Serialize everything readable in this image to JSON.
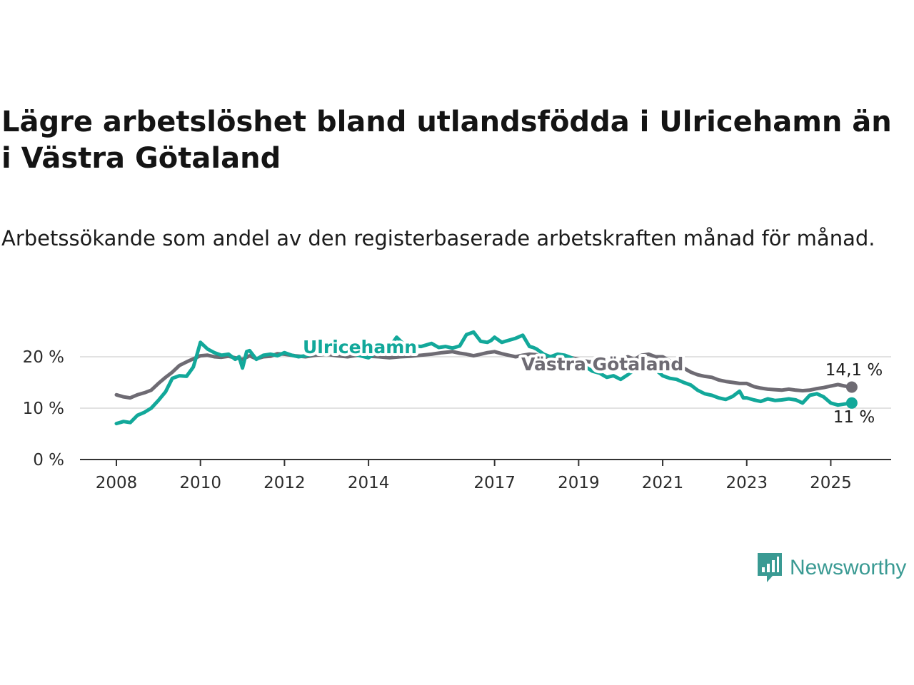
{
  "title": "Lägre arbetslöshet bland utlandsfödda i Ulricehamn än i Västra Götaland",
  "subtitle": "Arbetssökande som andel av den registerbaserade arbetskraften månad för månad.",
  "logo": {
    "text": "Newsworthy",
    "icon": "bar-chart-speech-bubble-icon",
    "color": "#3a9a93"
  },
  "chart_data": {
    "type": "line",
    "title": "Lägre arbetslöshet bland utlandsfödda i Ulricehamn än i Västra Götaland",
    "xlabel": "",
    "ylabel": "",
    "xlim": [
      2008,
      2025.5
    ],
    "ylim": [
      0,
      28
    ],
    "x_ticks": [
      2008,
      2010,
      2012,
      2014,
      2017,
      2019,
      2021,
      2023,
      2025
    ],
    "y_ticks": [
      {
        "value": 0,
        "label": "0 %"
      },
      {
        "value": 10,
        "label": "10 %"
      },
      {
        "value": 20,
        "label": "20 %"
      }
    ],
    "grid": "horizontal",
    "legend": "inline labels",
    "series": [
      {
        "name": "Ulricehamn",
        "color": "#12a89a",
        "end_label": "11 %",
        "x": [
          2008.0,
          2008.17,
          2008.33,
          2008.5,
          2008.67,
          2008.83,
          2009.0,
          2009.17,
          2009.33,
          2009.5,
          2009.67,
          2009.83,
          2009.92,
          2010.0,
          2010.17,
          2010.33,
          2010.5,
          2010.67,
          2010.83,
          2010.92,
          2011.0,
          2011.1,
          2011.17,
          2011.33,
          2011.5,
          2011.67,
          2011.83,
          2012.0,
          2012.17,
          2012.33,
          2012.5,
          2012.67,
          2012.83,
          2013.0,
          2013.25,
          2013.5,
          2013.75,
          2014.0,
          2014.17,
          2014.33,
          2014.5,
          2014.67,
          2014.83,
          2015.0,
          2015.25,
          2015.5,
          2015.67,
          2015.83,
          2016.0,
          2016.17,
          2016.33,
          2016.5,
          2016.67,
          2016.83,
          2016.92,
          2017.0,
          2017.17,
          2017.33,
          2017.5,
          2017.67,
          2017.83,
          2017.92,
          2018.0,
          2018.17,
          2018.33,
          2018.5,
          2018.67,
          2018.83,
          2019.0,
          2019.17,
          2019.33,
          2019.5,
          2019.67,
          2019.83,
          2020.0,
          2020.17,
          2020.33,
          2020.5,
          2020.67,
          2020.83,
          2021.0,
          2021.17,
          2021.33,
          2021.5,
          2021.67,
          2021.83,
          2022.0,
          2022.17,
          2022.33,
          2022.5,
          2022.67,
          2022.83,
          2022.92,
          2023.0,
          2023.17,
          2023.33,
          2023.5,
          2023.67,
          2023.83,
          2024.0,
          2024.17,
          2024.33,
          2024.5,
          2024.67,
          2024.83,
          2025.0,
          2025.17,
          2025.33,
          2025.5
        ],
        "values": [
          7.0,
          7.4,
          7.2,
          8.6,
          9.2,
          10.0,
          11.5,
          13.2,
          15.8,
          16.3,
          16.2,
          18.0,
          20.5,
          22.8,
          21.5,
          20.8,
          20.3,
          20.5,
          19.5,
          20.0,
          17.8,
          21.0,
          21.2,
          19.5,
          20.3,
          20.5,
          20.2,
          20.8,
          20.3,
          20.0,
          20.2,
          20.5,
          21.0,
          21.3,
          20.8,
          21.0,
          20.3,
          19.8,
          20.8,
          21.5,
          21.8,
          23.8,
          22.5,
          22.2,
          22.0,
          22.6,
          21.8,
          22.0,
          21.7,
          22.1,
          24.3,
          24.8,
          23.0,
          22.8,
          23.2,
          23.8,
          22.8,
          23.2,
          23.6,
          24.2,
          22.0,
          21.8,
          21.5,
          20.5,
          20.0,
          20.5,
          20.3,
          19.8,
          18.5,
          18.0,
          17.2,
          16.8,
          16.0,
          16.3,
          15.6,
          16.5,
          17.5,
          18.3,
          19.0,
          17.5,
          16.3,
          15.8,
          15.6,
          15.0,
          14.5,
          13.5,
          12.8,
          12.5,
          12.0,
          11.7,
          12.3,
          13.3,
          12.0,
          12.0,
          11.6,
          11.3,
          11.8,
          11.5,
          11.6,
          11.8,
          11.6,
          11.0,
          12.5,
          12.8,
          12.2,
          11.0,
          10.6,
          10.8,
          11.0
        ]
      },
      {
        "name": "Västra Götaland",
        "color": "#6e6b73",
        "end_label": "14,1 %",
        "x": [
          2008.0,
          2008.17,
          2008.33,
          2008.5,
          2008.67,
          2008.83,
          2009.0,
          2009.17,
          2009.33,
          2009.5,
          2009.67,
          2009.83,
          2010.0,
          2010.17,
          2010.33,
          2010.5,
          2010.67,
          2010.83,
          2011.0,
          2011.17,
          2011.33,
          2011.5,
          2011.67,
          2011.83,
          2012.0,
          2012.25,
          2012.5,
          2012.75,
          2013.0,
          2013.25,
          2013.5,
          2013.75,
          2014.0,
          2014.25,
          2014.5,
          2014.75,
          2015.0,
          2015.25,
          2015.5,
          2015.75,
          2016.0,
          2016.17,
          2016.33,
          2016.5,
          2016.67,
          2016.83,
          2017.0,
          2017.17,
          2017.33,
          2017.5,
          2017.67,
          2017.83,
          2018.0,
          2018.17,
          2018.33,
          2018.5,
          2018.67,
          2018.83,
          2019.0,
          2019.25,
          2019.5,
          2019.75,
          2020.0,
          2020.17,
          2020.33,
          2020.5,
          2020.67,
          2020.83,
          2021.0,
          2021.17,
          2021.33,
          2021.5,
          2021.67,
          2021.83,
          2022.0,
          2022.17,
          2022.33,
          2022.5,
          2022.67,
          2022.83,
          2023.0,
          2023.17,
          2023.33,
          2023.5,
          2023.67,
          2023.83,
          2024.0,
          2024.17,
          2024.33,
          2024.5,
          2024.67,
          2024.83,
          2025.0,
          2025.17,
          2025.33,
          2025.5
        ],
        "values": [
          12.6,
          12.2,
          12.0,
          12.6,
          13.0,
          13.5,
          14.8,
          16.0,
          17.0,
          18.3,
          19.0,
          19.6,
          20.2,
          20.3,
          20.0,
          19.9,
          20.1,
          19.8,
          19.5,
          20.2,
          19.6,
          20.0,
          20.1,
          20.6,
          20.5,
          20.2,
          20.0,
          20.3,
          20.5,
          20.2,
          20.0,
          20.3,
          20.1,
          20.0,
          19.8,
          20.0,
          20.1,
          20.3,
          20.5,
          20.8,
          21.0,
          20.7,
          20.5,
          20.2,
          20.5,
          20.8,
          21.0,
          20.6,
          20.3,
          20.0,
          20.3,
          20.5,
          20.4,
          20.0,
          19.8,
          19.5,
          19.6,
          19.8,
          19.5,
          19.0,
          19.2,
          18.8,
          19.5,
          20.0,
          19.5,
          20.3,
          20.5,
          20.0,
          20.0,
          19.2,
          18.5,
          17.8,
          17.0,
          16.5,
          16.2,
          16.0,
          15.5,
          15.2,
          15.0,
          14.8,
          14.8,
          14.2,
          13.9,
          13.7,
          13.6,
          13.5,
          13.7,
          13.5,
          13.4,
          13.5,
          13.8,
          14.0,
          14.3,
          14.6,
          14.3,
          14.1
        ]
      }
    ]
  }
}
